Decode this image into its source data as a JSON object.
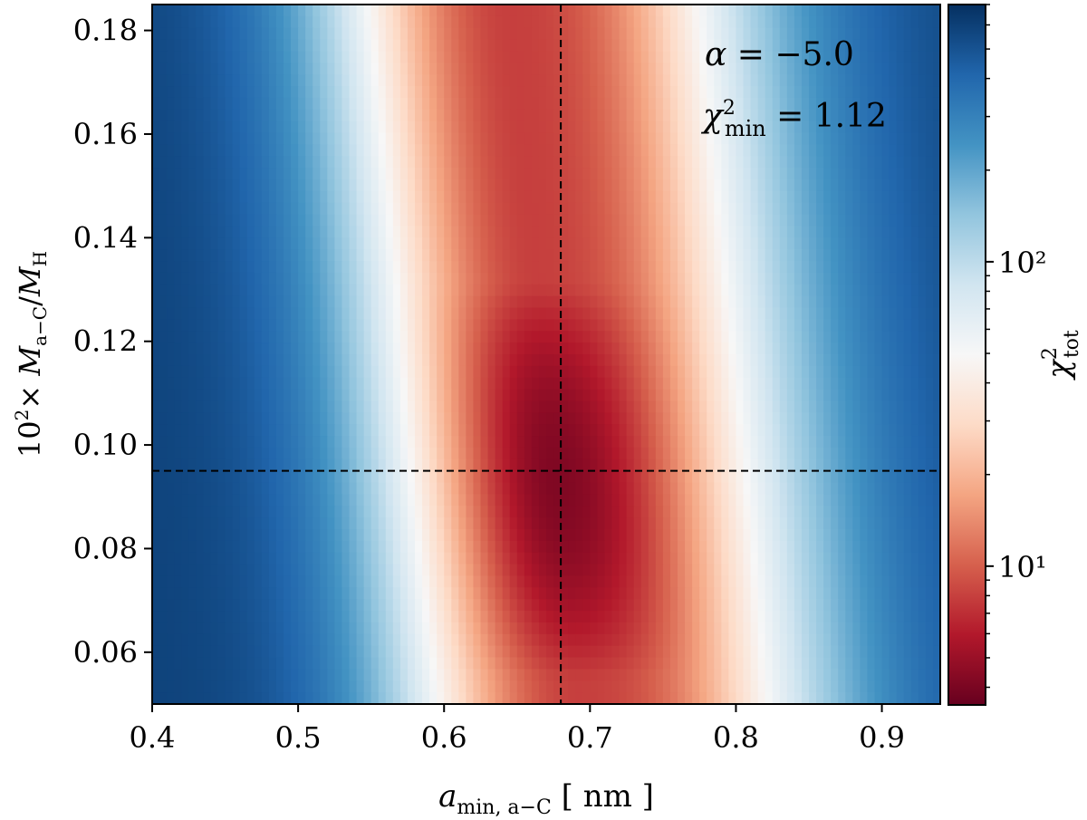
{
  "chart_data": {
    "type": "heatmap",
    "x": {
      "label": "a_min, a−C [ nm ]",
      "range": [
        0.4,
        0.94
      ],
      "ticks": [
        0.4,
        0.5,
        0.6,
        0.7,
        0.8,
        0.9
      ],
      "tick_labels": [
        "0.4",
        "0.5",
        "0.6",
        "0.7",
        "0.8",
        "0.9"
      ]
    },
    "y": {
      "label": "10² × M_a−C / M_H",
      "range": [
        0.05,
        0.185
      ],
      "ticks": [
        0.06,
        0.08,
        0.1,
        0.12,
        0.14,
        0.16,
        0.18
      ],
      "tick_labels": [
        "0.06",
        "0.08",
        "0.10",
        "0.12",
        "0.14",
        "0.16",
        "0.18"
      ]
    },
    "colorbar": {
      "label": "χ²_tot",
      "scale": "log",
      "range": [
        3.5,
        700
      ],
      "ticks": [
        10,
        100
      ],
      "tick_labels": [
        "10¹",
        "10²"
      ],
      "colormap": "RdBu",
      "low_color": "#67001f",
      "high_color": "#053061"
    },
    "best_fit": {
      "x": 0.68,
      "y": 0.095
    },
    "annotations": [
      {
        "symbol": "α",
        "value": "−5.0"
      },
      {
        "symbol": "χ²",
        "subscript": "min",
        "value": "1.12"
      }
    ]
  }
}
